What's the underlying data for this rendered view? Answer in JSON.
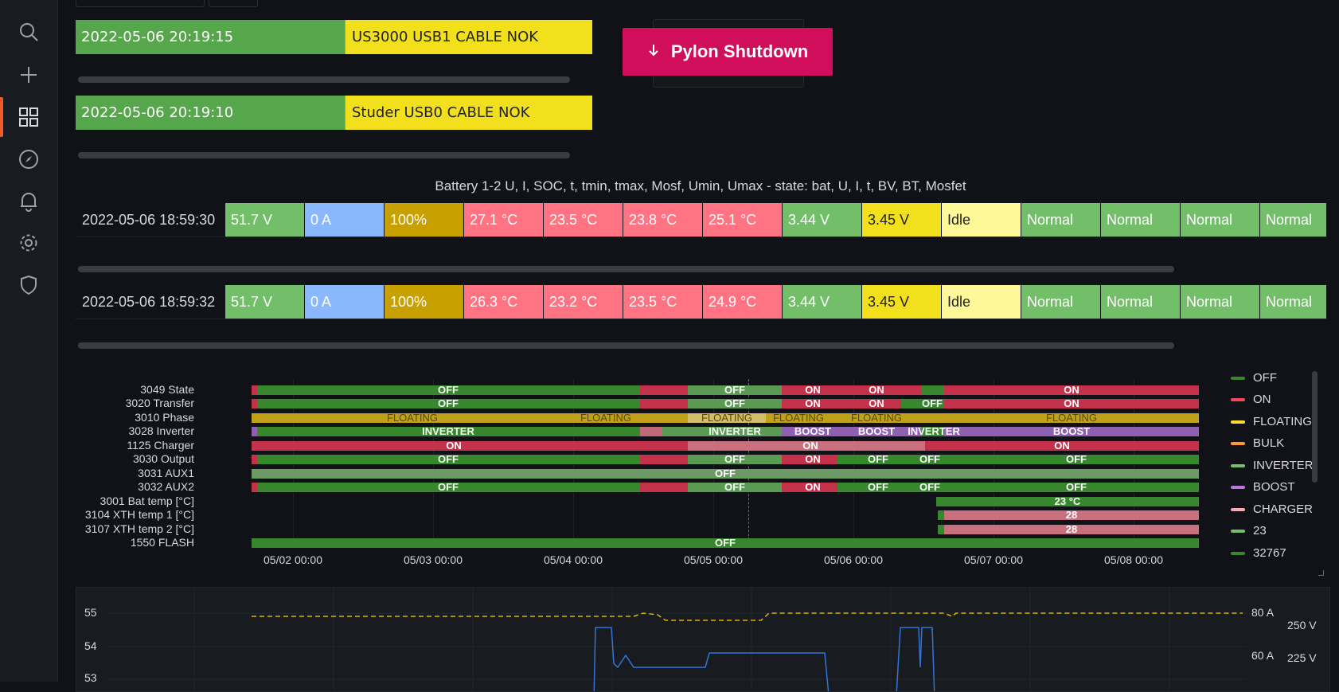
{
  "sidebar": {
    "icons": [
      "search-icon",
      "plus-icon",
      "dashboards-icon",
      "compass-icon",
      "bell-icon",
      "gear-icon",
      "shield-icon"
    ]
  },
  "alarms": [
    {
      "time": "2022-05-06 20:19:15",
      "message": "US3000 USB1 CABLE NOK"
    },
    {
      "time": "2022-05-06 20:19:10",
      "message": "Studer USB0 CABLE NOK"
    }
  ],
  "pylon_button": {
    "label": "Pylon Shutdown",
    "color": "#d10e5c"
  },
  "battery": {
    "title": "Battery 1-2 U, I, SOC, t, tmin, tmax, Mosf, Umin, Umax - state: bat, U, I, t, BV, BT, Mosfet",
    "rows": [
      {
        "time": "2022-05-06 18:59:30",
        "cells": [
          "51.7 V",
          "0 A",
          "100%",
          "27.1 °C",
          "23.5 °C",
          "23.8 °C",
          "25.1 °C",
          "3.44 V",
          "3.45 V",
          "Idle",
          "Normal",
          "Normal",
          "Normal",
          "Normal"
        ]
      },
      {
        "time": "2022-05-06 18:59:32",
        "cells": [
          "51.7 V",
          "0 A",
          "100%",
          "26.3 °C",
          "23.2 °C",
          "23.5 °C",
          "24.9 °C",
          "3.44 V",
          "3.45 V",
          "Idle",
          "Normal",
          "Normal",
          "Normal",
          "Normal"
        ]
      }
    ],
    "cell_colors": [
      "#73bf69",
      "#8ab8ff",
      "#c8a000",
      "#ff7383",
      "#ff7383",
      "#ff7383",
      "#ff7383",
      "#73bf69",
      "#f2e01c",
      "#fff899",
      "#73bf69",
      "#73bf69",
      "#73bf69",
      "#73bf69"
    ]
  },
  "state_timeline": {
    "rows": [
      "3049 State",
      "3020 Transfer",
      "3010 Phase",
      "3028 Inverter",
      "1125 Charger",
      "3030 Output",
      "3031 AUX1",
      "3032 AUX2",
      "3001 Bat temp [°C]",
      "3104 XTH temp 1 [°C]",
      "3107 XTH temp 2 [°C]",
      "1550 FLASH"
    ],
    "x_ticks": [
      "05/02 00:00",
      "05/03 00:00",
      "05/04 00:00",
      "05/05 00:00",
      "05/06 00:00",
      "05/07 00:00",
      "05/08 00:00"
    ],
    "segment_labels": {
      "off": "OFF",
      "on": "ON",
      "floating": "FLOATING",
      "inverter": "INVERTER",
      "boost": "BOOST",
      "temp_bat": "23 °C",
      "temp_xth": "28"
    },
    "legend": [
      {
        "label": "OFF",
        "color": "#37872d"
      },
      {
        "label": "ON",
        "color": "#f2495c"
      },
      {
        "label": "FLOATING",
        "color": "#fade2a"
      },
      {
        "label": "BULK",
        "color": "#ff9830"
      },
      {
        "label": "INVERTER",
        "color": "#73bf69"
      },
      {
        "label": "BOOST",
        "color": "#b877d9"
      },
      {
        "label": "CHARGER",
        "color": "#ffa6b0"
      },
      {
        "label": "23",
        "color": "#73bf69"
      },
      {
        "label": "32767",
        "color": "#37872d"
      }
    ]
  },
  "bottom_chart": {
    "left_ticks": [
      "55",
      "54",
      "53"
    ],
    "right_ticks_a": [
      "80 A",
      "60 A"
    ],
    "right_ticks_b": [
      "250 V",
      "225 V"
    ]
  }
}
